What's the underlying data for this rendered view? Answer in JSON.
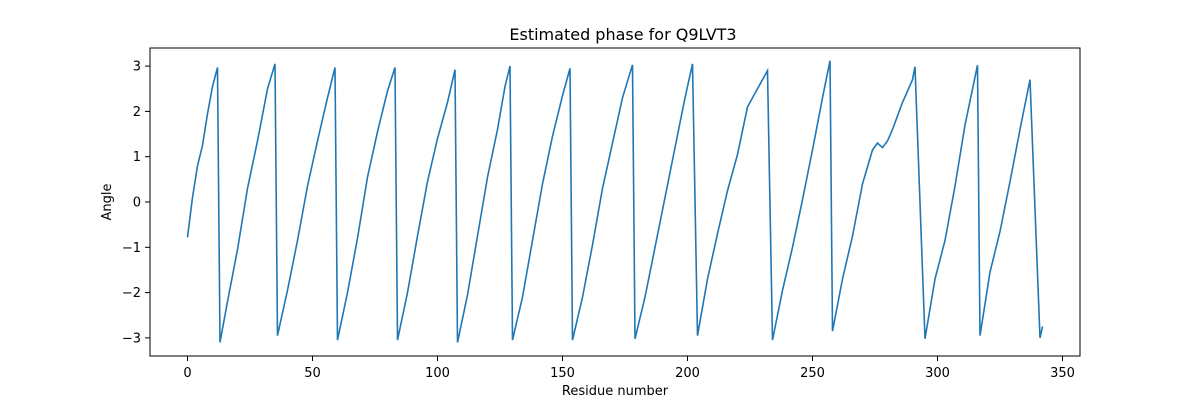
{
  "chart_data": {
    "type": "line",
    "title": "Estimated phase for Q9LVT3",
    "xlabel": "Residue number",
    "ylabel": "Angle",
    "xlim": [
      -15,
      357
    ],
    "ylim": [
      -3.4,
      3.4
    ],
    "xticks": [
      0,
      50,
      100,
      150,
      200,
      250,
      300,
      350
    ],
    "yticks": [
      -3,
      -2,
      -1,
      0,
      1,
      2,
      3
    ],
    "grid": false,
    "line_color": "#1f77b4",
    "series": [
      {
        "x": [
          0,
          2,
          4,
          6,
          8,
          10,
          12,
          13,
          16,
          20,
          24,
          28,
          32,
          35,
          36,
          40,
          44,
          48,
          52,
          56,
          59,
          60,
          64,
          68,
          72,
          76,
          80,
          83,
          84,
          88,
          92,
          96,
          100,
          104,
          107,
          108,
          112,
          116,
          120,
          124,
          127,
          129,
          130,
          134,
          138,
          142,
          146,
          150,
          153,
          154,
          158,
          162,
          166,
          170,
          174,
          178,
          179,
          183,
          187,
          191,
          195,
          199,
          202,
          204,
          208,
          212,
          216,
          220,
          224,
          228,
          232,
          234,
          238,
          242,
          246,
          250,
          254,
          257,
          258,
          262,
          266,
          270,
          274,
          276,
          278,
          280,
          282,
          286,
          290,
          291,
          295,
          299,
          303,
          307,
          311,
          316,
          317,
          321,
          325,
          329,
          333,
          337,
          341,
          342
        ],
        "y": [
          -0.78,
          0.1,
          0.8,
          1.25,
          1.95,
          2.55,
          2.97,
          -3.1,
          -2.2,
          -1.05,
          0.3,
          1.35,
          2.5,
          3.05,
          -2.95,
          -1.95,
          -0.85,
          0.35,
          1.35,
          2.3,
          2.97,
          -3.05,
          -2.0,
          -0.8,
          0.55,
          1.55,
          2.45,
          2.97,
          -3.05,
          -2.0,
          -0.75,
          0.45,
          1.4,
          2.2,
          2.92,
          -3.1,
          -2.05,
          -0.75,
          0.55,
          1.6,
          2.55,
          3.0,
          -3.05,
          -2.1,
          -0.85,
          0.4,
          1.45,
          2.35,
          2.95,
          -3.05,
          -2.1,
          -0.95,
          0.3,
          1.3,
          2.3,
          3.03,
          -3.02,
          -2.1,
          -1.0,
          0.1,
          1.2,
          2.3,
          3.05,
          -2.95,
          -1.7,
          -0.7,
          0.25,
          1.05,
          2.1,
          2.5,
          2.9,
          -3.05,
          -1.95,
          -1.0,
          0.05,
          1.15,
          2.3,
          3.12,
          -2.85,
          -1.7,
          -0.75,
          0.4,
          1.15,
          1.3,
          1.2,
          1.35,
          1.6,
          2.2,
          2.7,
          2.99,
          -3.02,
          -1.7,
          -0.85,
          0.35,
          1.7,
          3.02,
          -2.95,
          -1.55,
          -0.65,
          0.45,
          1.6,
          2.7,
          -3.0,
          -2.75
        ]
      }
    ]
  }
}
